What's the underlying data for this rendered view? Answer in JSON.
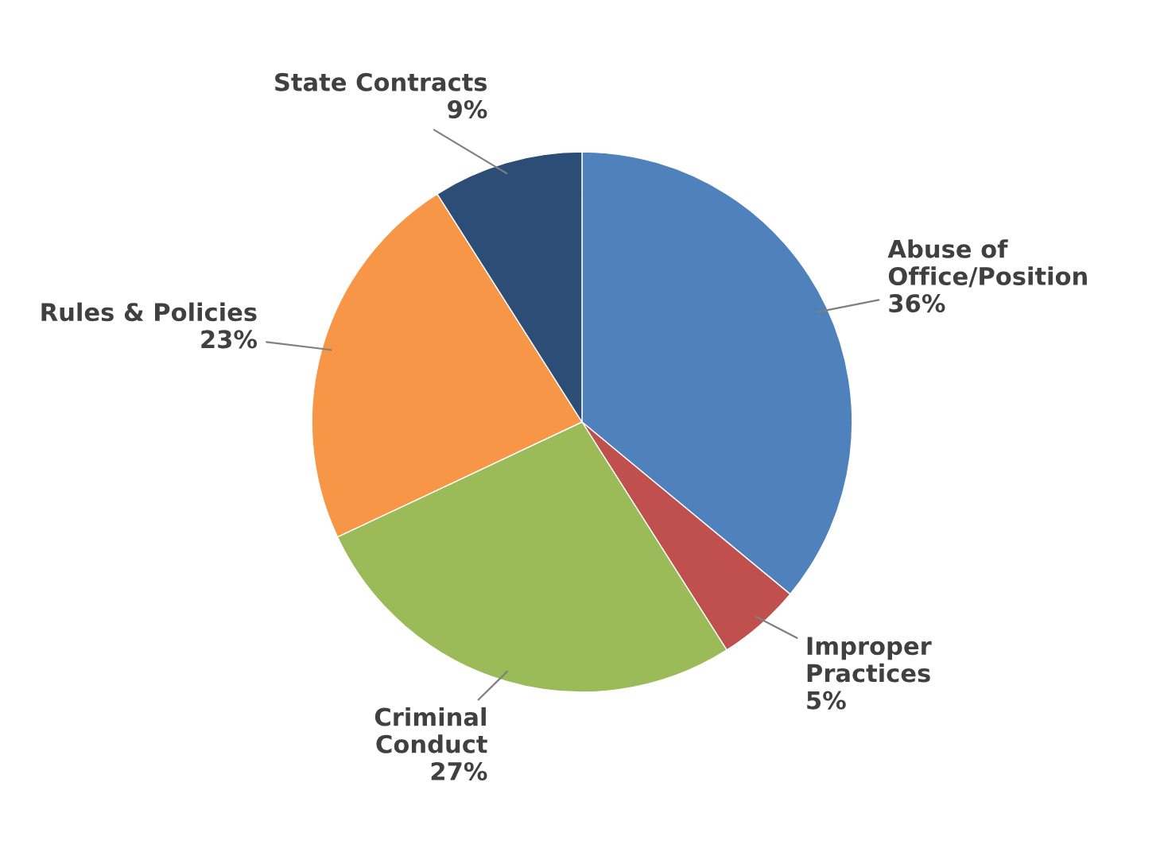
{
  "chart_data": {
    "type": "pie",
    "categories": [
      "Abuse of\nOffice/Position",
      "Improper\nPractices",
      "Criminal\nConduct",
      "Rules & Policies",
      "State Contracts"
    ],
    "values": [
      36,
      5,
      27,
      23,
      9
    ],
    "value_labels": [
      "36%",
      "5%",
      "27%",
      "23%",
      "9%"
    ],
    "colors": [
      "#4f81bd",
      "#c0504d",
      "#9bbb59",
      "#f79646",
      "#2c4d75"
    ],
    "legend": false
  }
}
